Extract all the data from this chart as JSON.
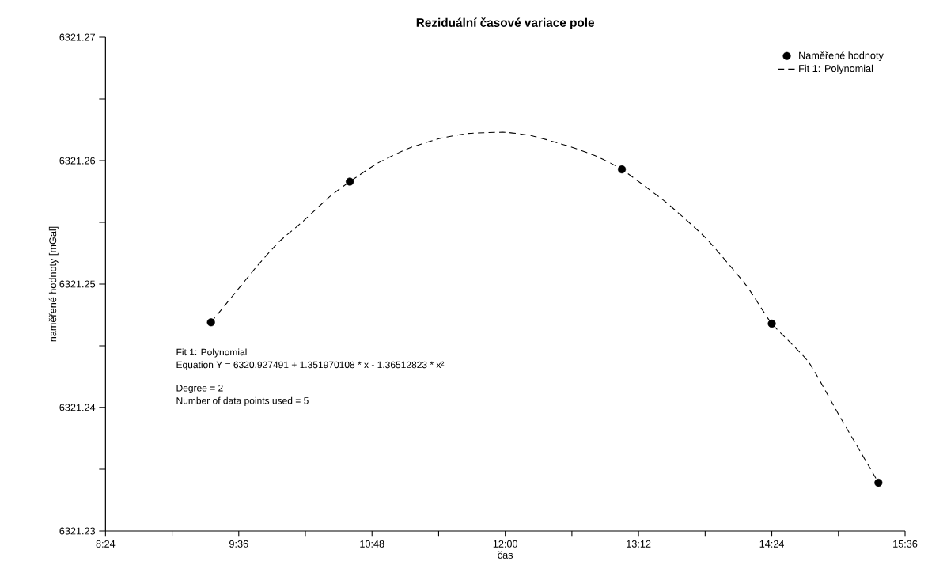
{
  "chart_data": {
    "type": "scatter",
    "title": "Reziduální časové variace pole",
    "xlabel": "čas",
    "ylabel": "naměřené hodnoty [mGal]",
    "xlim": [
      8.4,
      15.6
    ],
    "xticks": [
      {
        "value": 8.4,
        "label": "8:24"
      },
      {
        "value": 9.0,
        "label": null
      },
      {
        "value": 9.6,
        "label": "9:36"
      },
      {
        "value": 10.2,
        "label": null
      },
      {
        "value": 10.8,
        "label": "10:48"
      },
      {
        "value": 11.4,
        "label": null
      },
      {
        "value": 12.0,
        "label": "12:00"
      },
      {
        "value": 12.6,
        "label": null
      },
      {
        "value": 13.2,
        "label": "13:12"
      },
      {
        "value": 13.8,
        "label": null
      },
      {
        "value": 14.4,
        "label": "14:24"
      },
      {
        "value": 15.0,
        "label": null
      },
      {
        "value": 15.6,
        "label": "15:36"
      }
    ],
    "ylim": [
      6321.23,
      6321.27
    ],
    "yticks": [
      6321.23,
      {
        "value": 6321.235,
        "label": null
      },
      6321.24,
      {
        "value": 6321.245,
        "label": null
      },
      6321.25,
      {
        "value": 6321.255,
        "label": null
      },
      6321.26,
      {
        "value": 6321.265,
        "label": null
      },
      6321.27
    ],
    "series": [
      {
        "name": "Naměřené hodnoty",
        "color": "#000000",
        "marker": "circle",
        "x": [
          9.35,
          10.6,
          13.05,
          14.4,
          15.36
        ],
        "values": [
          6321.2469,
          6321.2583,
          6321.2593,
          6321.2468,
          6321.2339
        ]
      },
      {
        "name": "Fit 1: Polynomial",
        "type": "line",
        "color": "#000000",
        "marker": "none",
        "line_style": "dashed",
        "x": [
          9.35,
          9.56,
          9.76,
          9.96,
          10.18,
          10.42,
          10.6,
          10.85,
          11.13,
          11.41,
          11.67,
          12.0,
          12.25,
          12.56,
          12.81,
          13.05,
          13.45,
          13.81,
          14.17,
          14.4,
          14.73,
          15.01,
          15.29,
          15.36
        ],
        "values": [
          6321.2469,
          6321.2492,
          6321.2514,
          6321.2534,
          6321.2551,
          6321.2571,
          6321.2583,
          6321.2598,
          6321.261,
          6321.2618,
          6321.2622,
          6321.2623,
          6321.262,
          6321.2612,
          6321.2604,
          6321.2593,
          6321.2566,
          6321.2537,
          6321.2499,
          6321.2468,
          6321.2437,
          6321.2393,
          6321.235,
          6321.2339
        ]
      }
    ],
    "legend": "top right",
    "grid": false,
    "annotations": [
      "Fit 1: Polynomial",
      "Equation Y = 6320.927491 + 1.351970108 * x - 1.36512823 * x²",
      "Degree = 2",
      "Number of data points used = 5"
    ]
  }
}
